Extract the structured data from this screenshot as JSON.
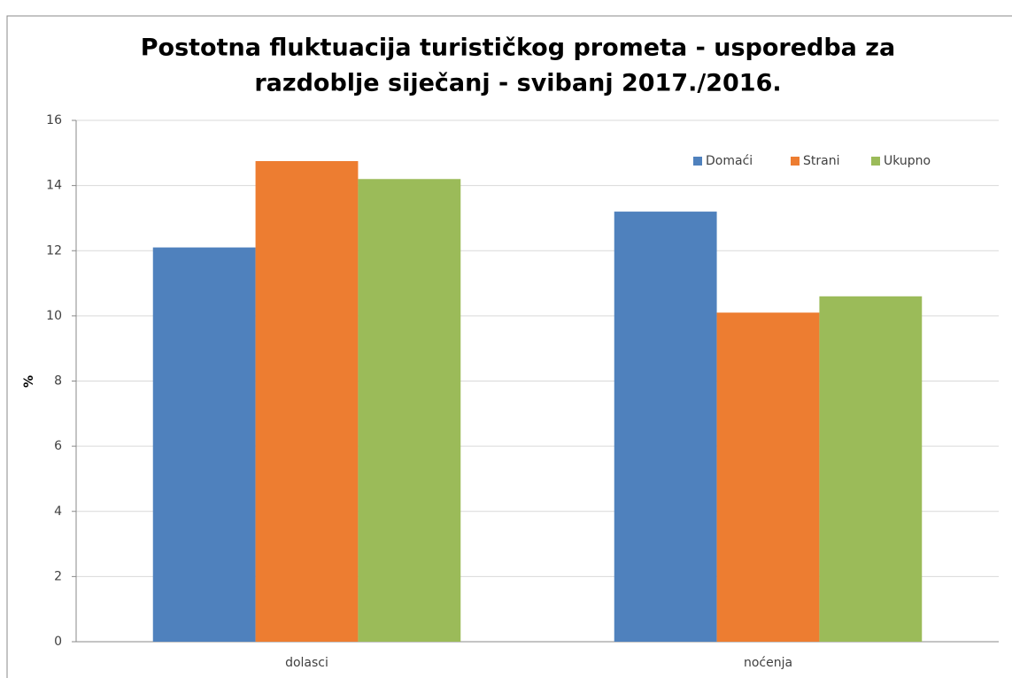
{
  "chart_data": {
    "type": "bar",
    "title": [
      "Postotna fluktuacija turističkog prometa - usporedba za",
      "razdoblje siječanj - svibanj 2017./2016."
    ],
    "y_label": "%",
    "categories": [
      "dolasci",
      "noćenja"
    ],
    "series": [
      {
        "name": "Domaći",
        "color": "#4f81bd",
        "values": [
          12.1,
          13.2
        ]
      },
      {
        "name": "Strani",
        "color": "#ed7d31",
        "values": [
          14.75,
          10.1
        ]
      },
      {
        "name": "Ukupno",
        "color": "#9bbb59",
        "values": [
          14.2,
          10.6
        ]
      }
    ],
    "ylim": [
      0,
      16
    ],
    "yticks": [
      0,
      2,
      4,
      6,
      8,
      10,
      12,
      14,
      16
    ],
    "grid": true,
    "legend": "top-right"
  }
}
